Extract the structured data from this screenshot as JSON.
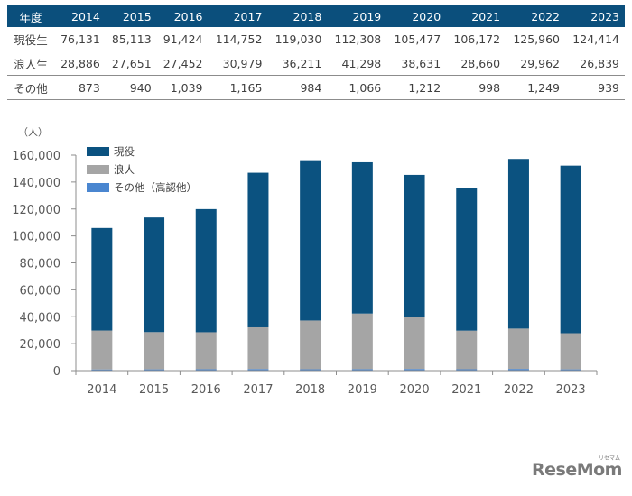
{
  "table": {
    "header_label": "年度",
    "years": [
      "2014",
      "2015",
      "2016",
      "2017",
      "2018",
      "2019",
      "2020",
      "2021",
      "2022",
      "2023"
    ],
    "rows": [
      {
        "label": "現役生",
        "values": [
          "76,131",
          "85,113",
          "91,424",
          "114,752",
          "119,030",
          "112,308",
          "105,477",
          "106,172",
          "125,960",
          "124,414"
        ]
      },
      {
        "label": "浪人生",
        "values": [
          "28,886",
          "27,651",
          "27,452",
          "30,979",
          "36,211",
          "41,298",
          "38,631",
          "28,660",
          "29,962",
          "26,839"
        ]
      },
      {
        "label": "その他",
        "values": [
          "873",
          "940",
          "1,039",
          "1,165",
          "984",
          "1,066",
          "1,212",
          "998",
          "1,249",
          "939"
        ]
      }
    ]
  },
  "chart_data": {
    "type": "bar",
    "stacked": true,
    "title": "",
    "ylabel": "（人）",
    "xlabel": "",
    "ylim": [
      0,
      160000
    ],
    "yticks": [
      0,
      20000,
      40000,
      60000,
      80000,
      100000,
      120000,
      140000,
      160000
    ],
    "ytick_labels": [
      "0",
      "20,000",
      "40,000",
      "60,000",
      "80,000",
      "100,000",
      "120,000",
      "140,000",
      "160,000"
    ],
    "categories": [
      "2014",
      "2015",
      "2016",
      "2017",
      "2018",
      "2019",
      "2020",
      "2021",
      "2022",
      "2023"
    ],
    "series": [
      {
        "name": "その他（高認他）",
        "color": "#4a86d0",
        "values": [
          873,
          940,
          1039,
          1165,
          984,
          1066,
          1212,
          998,
          1249,
          939
        ]
      },
      {
        "name": "浪人",
        "color": "#a5a5a5",
        "values": [
          28886,
          27651,
          27452,
          30979,
          36211,
          41298,
          38631,
          28660,
          29962,
          26839
        ]
      },
      {
        "name": "現役",
        "color": "#0b5280",
        "values": [
          76131,
          85113,
          91424,
          114752,
          119030,
          112308,
          105477,
          106172,
          125960,
          124414
        ]
      }
    ],
    "legend": {
      "placement": "top-left",
      "order": [
        "現役",
        "浪人",
        "その他（高認他）"
      ]
    },
    "grid": false
  },
  "logo": {
    "text": "ReseMom",
    "sub": "リセマム"
  }
}
